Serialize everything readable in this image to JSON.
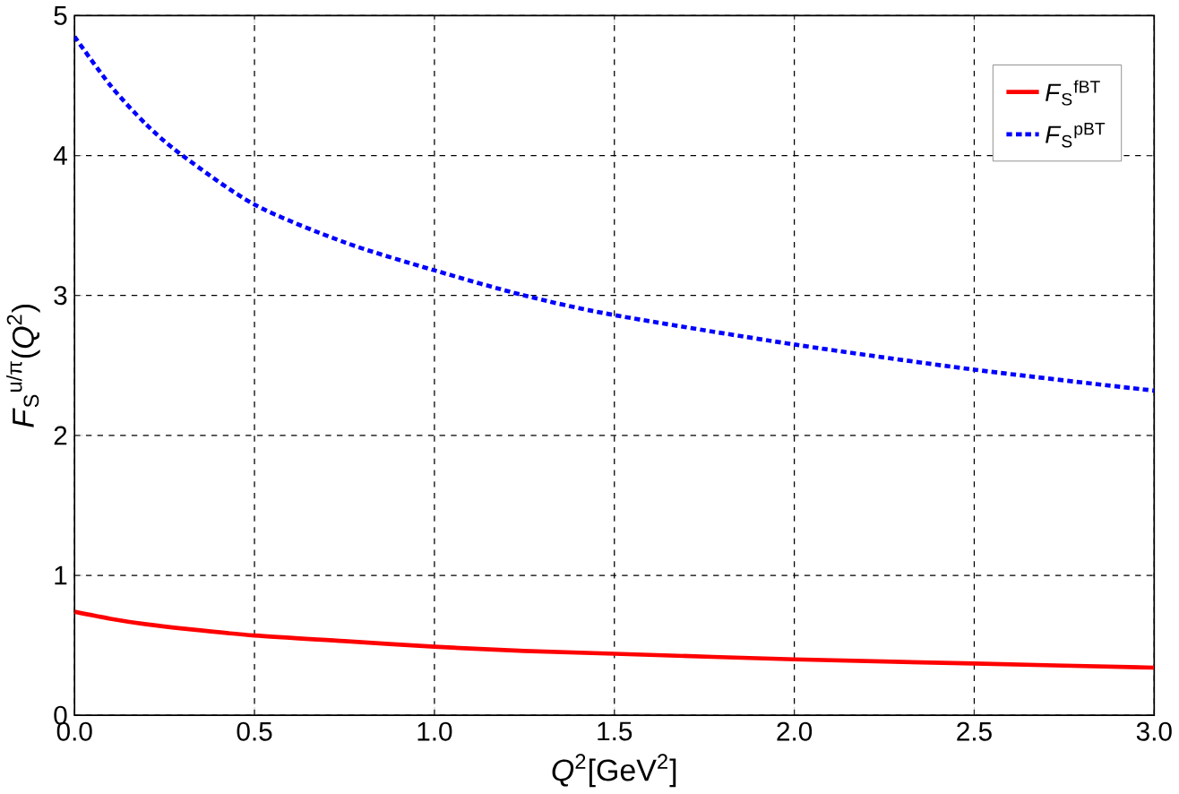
{
  "chart_data": {
    "type": "line",
    "xlabel": "*Q*$^{2}$[GeV$^{2}$]",
    "ylabel": "*F*$_{S}$$^{u/π}$(*Q*$^{2}$)",
    "xlim": [
      0,
      3
    ],
    "ylim": [
      0,
      5
    ],
    "xticks": [
      {
        "value": 0,
        "label": "0.0"
      },
      {
        "value": 0.5,
        "label": "0.5"
      },
      {
        "value": 1,
        "label": "1.0"
      },
      {
        "value": 1.5,
        "label": "1.5"
      },
      {
        "value": 2,
        "label": "2.0"
      },
      {
        "value": 2.5,
        "label": "2.5"
      },
      {
        "value": 3,
        "label": "3.0"
      }
    ],
    "yticks": [
      0,
      1,
      2,
      3,
      4,
      5
    ],
    "grid": true,
    "legend": "top right",
    "x": [
      0,
      0.1,
      0.2,
      0.3,
      0.5,
      0.75,
      1,
      1.25,
      1.5,
      2,
      2.5,
      3
    ],
    "series": [
      {
        "name": "*F*$_{S}$$^{fBT}$",
        "color": "#ff0000",
        "line_style": "solid",
        "values": [
          0.74,
          0.69,
          0.65,
          0.62,
          0.57,
          0.53,
          0.49,
          0.46,
          0.44,
          0.4,
          0.37,
          0.34
        ]
      },
      {
        "name": "*F*$_{S}$$^{pBT}$",
        "color": "#0000ff",
        "line_style": "dotted",
        "values": [
          4.85,
          4.5,
          4.22,
          4.0,
          3.65,
          3.38,
          3.18,
          3.0,
          2.86,
          2.65,
          2.47,
          2.32
        ]
      }
    ]
  }
}
